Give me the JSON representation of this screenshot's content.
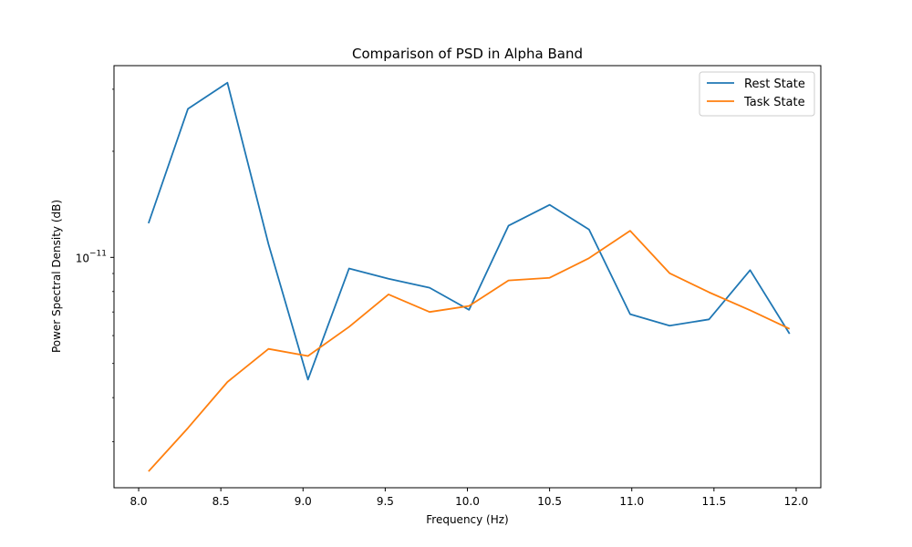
{
  "chart_data": {
    "type": "line",
    "title": "Comparison of PSD in Alpha Band",
    "xlabel": "Frequency (Hz)",
    "ylabel": "Power Spectral Density (dB)",
    "xlim": [
      7.85,
      12.15
    ],
    "ylim": [
      2.22e-12,
      3.5e-11
    ],
    "yscale": "log",
    "grid": false,
    "legend_position": "top-right",
    "x": [
      8.06,
      8.3,
      8.54,
      8.79,
      9.03,
      9.28,
      9.52,
      9.77,
      10.01,
      10.25,
      10.5,
      10.74,
      10.99,
      11.23,
      11.47,
      11.72,
      11.96
    ],
    "series": [
      {
        "name": "Rest State",
        "color": "#1f77b4",
        "values": [
          1.25e-11,
          2.64e-11,
          3.13e-11,
          1.09e-11,
          4.5e-12,
          9.3e-12,
          8.7e-12,
          8.2e-12,
          7.1e-12,
          1.23e-11,
          1.41e-11,
          1.2e-11,
          6.9e-12,
          6.4e-12,
          6.67e-12,
          9.2e-12,
          6.07e-12
        ]
      },
      {
        "name": "Task State",
        "color": "#ff7f0e",
        "values": [
          2.47e-12,
          3.28e-12,
          4.43e-12,
          5.5e-12,
          5.25e-12,
          6.35e-12,
          7.85e-12,
          7e-12,
          7.28e-12,
          8.6e-12,
          8.75e-12,
          9.95e-12,
          1.19e-11,
          9.02e-12,
          7.96e-12,
          7.08e-12,
          6.27e-12
        ]
      }
    ],
    "x_ticks": [
      {
        "value": 8.0,
        "label": "8.0"
      },
      {
        "value": 8.5,
        "label": "8.5"
      },
      {
        "value": 9.0,
        "label": "9.0"
      },
      {
        "value": 9.5,
        "label": "9.5"
      },
      {
        "value": 10.0,
        "label": "10.0"
      },
      {
        "value": 10.5,
        "label": "10.5"
      },
      {
        "value": 11.0,
        "label": "11.0"
      },
      {
        "value": 11.5,
        "label": "11.5"
      },
      {
        "value": 12.0,
        "label": "12.0"
      }
    ],
    "y_major_ticks": [
      {
        "value": 1e-11,
        "base": "10",
        "exponent": "−11"
      }
    ],
    "y_minor_ticks": [
      3e-12,
      4e-12,
      5e-12,
      6e-12,
      7e-12,
      8e-12,
      9e-12,
      2e-11,
      3e-11
    ]
  }
}
